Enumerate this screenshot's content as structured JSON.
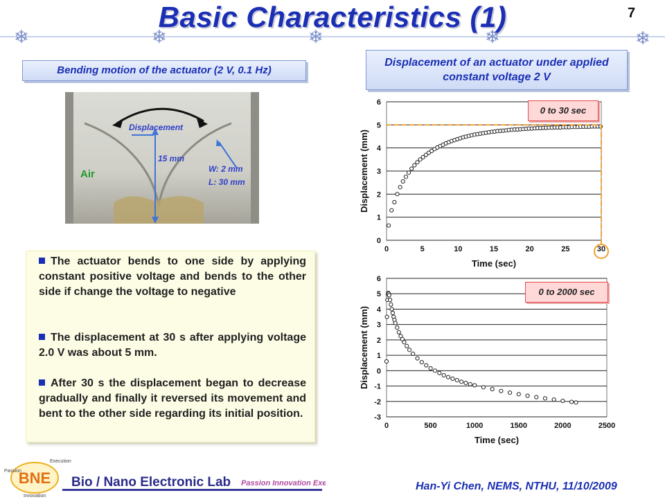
{
  "header": {
    "title": "Basic Characteristics (1)",
    "page_number": "7"
  },
  "left": {
    "figure_label": "Bending motion of the actuator (2 V, 0.1 Hz)",
    "photo": {
      "displacement": "Displacement",
      "height": "15 mm",
      "air": "Air",
      "width": "W: 2 mm",
      "length": "L: 30 mm"
    },
    "bullets": [
      "The actuator bends to one side by applying constant positive voltage and bends to the other side if change the voltage to negative",
      "The displacement at 30 s after applying voltage 2.0 V was about 5 mm.",
      "After 30 s the displacement began to decrease gradually and finally it reversed its movement and bent to the other side regarding its initial position."
    ]
  },
  "right": {
    "figure_label": "Displacement of an actuator under applied constant voltage 2 V"
  },
  "footer": {
    "credit": "Han-Yi Chen, NEMS, NTHU, 11/10/2009",
    "lab_name": "Bio / Nano Electronic Lab",
    "lab_slogan": "Passion Innovation Execution",
    "logo_text": "BNE",
    "logo_words": [
      "Execution",
      "Passion",
      "Innovation"
    ]
  },
  "colors": {
    "title": "#1a2fb4",
    "accent_orange": "#f0a030",
    "tag_red": "#e64a4a"
  },
  "chart_data": [
    {
      "type": "scatter",
      "tag": "0 to 30 sec",
      "xlabel": "Time (sec)",
      "ylabel": "Displacement (mm)",
      "xlim": [
        0,
        30
      ],
      "ylim": [
        0,
        6
      ],
      "xticks": [
        "0",
        "5",
        "10",
        "15",
        "20",
        "25",
        "30"
      ],
      "yticks": [
        "0",
        "1",
        "2",
        "3",
        "4",
        "5",
        "6"
      ],
      "grid": "horizontal",
      "marker": "open-circle",
      "annotation": {
        "x": 30,
        "y": 5
      },
      "series": [
        {
          "x": [
            0.3,
            0.7,
            1.1,
            1.5,
            1.9,
            2.3,
            2.7,
            3.1,
            3.5,
            3.9,
            4.3,
            4.7,
            5.1,
            5.5,
            5.9,
            6.3,
            6.7,
            7.1,
            7.5,
            7.9,
            8.3,
            8.7,
            9.1,
            9.5,
            9.9,
            10.3,
            10.7,
            11.1,
            11.5,
            11.9,
            12.3,
            12.7,
            13.1,
            13.5,
            13.9,
            14.3,
            14.7,
            15.1,
            15.5,
            15.9,
            16.3,
            16.7,
            17.1,
            17.5,
            17.9,
            18.3,
            18.7,
            19.1,
            19.5,
            19.9,
            20.3,
            20.7,
            21.1,
            21.5,
            21.9,
            22.3,
            22.7,
            23.1,
            23.5,
            23.9,
            24.3,
            24.7,
            25.1,
            25.5,
            25.9,
            26.3,
            26.7,
            27.1,
            27.5,
            27.9,
            28.3,
            28.7,
            29.1,
            29.5,
            29.9
          ],
          "y": [
            0.64,
            1.3,
            1.65,
            2.0,
            2.3,
            2.55,
            2.75,
            2.93,
            3.1,
            3.25,
            3.38,
            3.5,
            3.6,
            3.7,
            3.79,
            3.87,
            3.95,
            4.02,
            4.08,
            4.14,
            4.2,
            4.25,
            4.3,
            4.34,
            4.38,
            4.42,
            4.46,
            4.49,
            4.52,
            4.55,
            4.58,
            4.6,
            4.62,
            4.64,
            4.66,
            4.68,
            4.7,
            4.71,
            4.73,
            4.74,
            4.75,
            4.76,
            4.78,
            4.79,
            4.8,
            4.8,
            4.81,
            4.82,
            4.83,
            4.84,
            4.84,
            4.85,
            4.86,
            4.86,
            4.87,
            4.87,
            4.88,
            4.88,
            4.89,
            4.89,
            4.89,
            4.9,
            4.9,
            4.9,
            4.91,
            4.91,
            4.91,
            4.92,
            4.92,
            4.92,
            4.92,
            4.93,
            4.93,
            4.93,
            4.93
          ]
        }
      ]
    },
    {
      "type": "scatter",
      "tag": "0 to 2000 sec",
      "xlabel": "Time (sec)",
      "ylabel": "Displacement (mm)",
      "xlim": [
        0,
        2500
      ],
      "ylim": [
        -3,
        6
      ],
      "xticks": [
        "0",
        "500",
        "1000",
        "1500",
        "2000",
        "2500"
      ],
      "yticks": [
        "-3",
        "-2",
        "-1",
        "0",
        "1",
        "2",
        "3",
        "4",
        "5",
        "6"
      ],
      "grid": "horizontal",
      "marker": "open-circle",
      "series": [
        {
          "x": [
            0,
            5,
            10,
            15,
            20,
            25,
            30,
            40,
            50,
            60,
            70,
            80,
            90,
            100,
            120,
            140,
            160,
            180,
            200,
            230,
            260,
            300,
            350,
            400,
            450,
            500,
            550,
            600,
            650,
            700,
            750,
            800,
            850,
            900,
            950,
            1000,
            1100,
            1200,
            1300,
            1400,
            1500,
            1600,
            1700,
            1800,
            1900,
            2000,
            2100,
            2150
          ],
          "y": [
            0.6,
            3.5,
            4.6,
            4.95,
            5.05,
            5.0,
            4.9,
            4.6,
            4.3,
            4.0,
            3.75,
            3.5,
            3.3,
            3.1,
            2.8,
            2.5,
            2.25,
            2.05,
            1.85,
            1.6,
            1.35,
            1.1,
            0.8,
            0.55,
            0.35,
            0.15,
            0.0,
            -0.15,
            -0.3,
            -0.42,
            -0.52,
            -0.62,
            -0.72,
            -0.8,
            -0.88,
            -0.95,
            -1.08,
            -1.2,
            -1.32,
            -1.43,
            -1.53,
            -1.63,
            -1.72,
            -1.8,
            -1.88,
            -1.96,
            -2.03,
            -2.07
          ]
        }
      ]
    }
  ]
}
